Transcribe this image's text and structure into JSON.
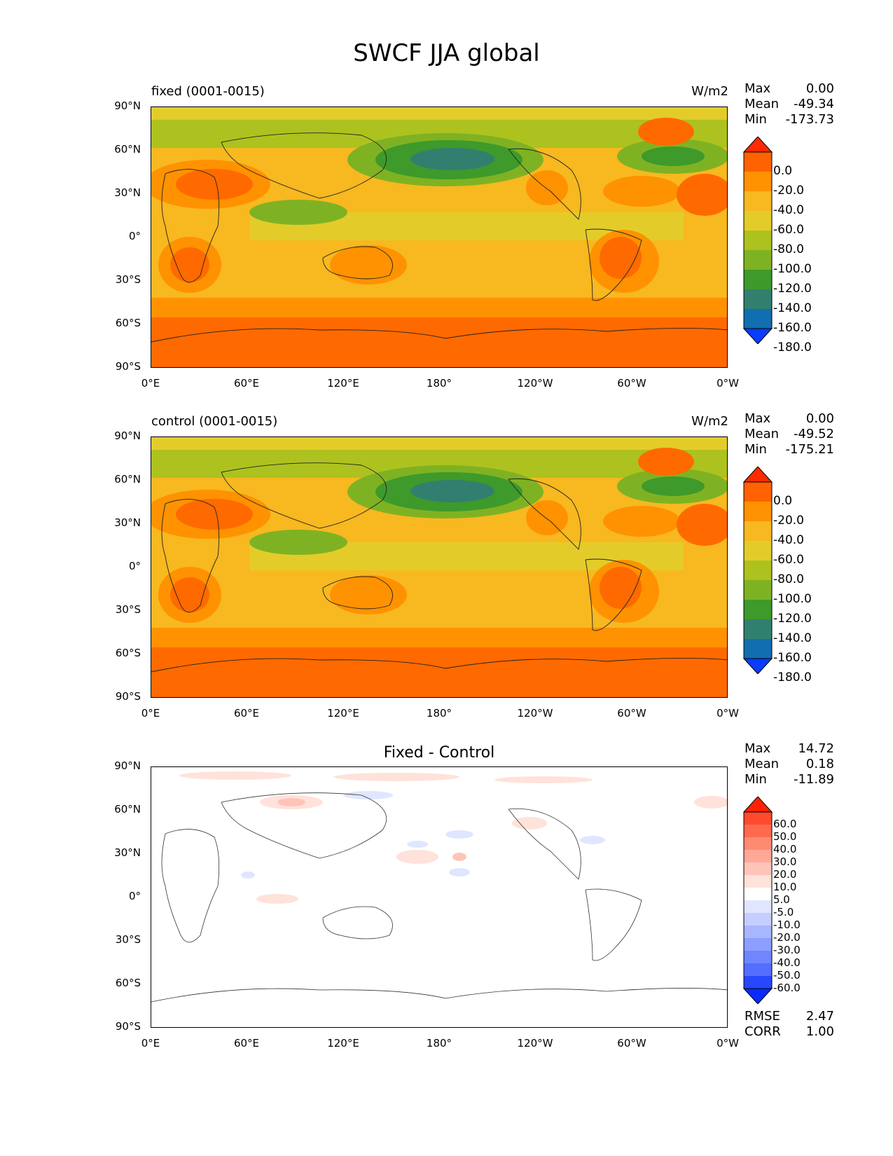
{
  "figure_title": "SWCF JJA global",
  "axes": {
    "lat_labels": [
      "90°N",
      "60°N",
      "30°N",
      "0°",
      "30°S",
      "60°S",
      "90°S"
    ],
    "lon_labels": [
      "0°E",
      "60°E",
      "120°E",
      "180°",
      "120°W",
      "60°W",
      "0°W"
    ]
  },
  "panels": [
    {
      "id": "fixed",
      "title": "fixed (0001-0015)",
      "units": "W/m2",
      "stats": [
        {
          "label": "Max",
          "value": "0.00"
        },
        {
          "label": "Mean",
          "value": "-49.34"
        },
        {
          "label": "Min",
          "value": "-173.73"
        }
      ],
      "colorbar": {
        "labels": [
          "0.0",
          "-20.0",
          "-40.0",
          "-60.0",
          "-80.0",
          "-100.0",
          "-120.0",
          "-140.0",
          "-160.0",
          "-180.0"
        ],
        "colors": [
          "#ff2a00",
          "#ff6200",
          "#ff9200",
          "#f7b820",
          "#e3cc2a",
          "#adc21e",
          "#7fb223",
          "#3e9a2a",
          "#31806f",
          "#116eb0",
          "#0a3cff"
        ]
      }
    },
    {
      "id": "control",
      "title": "control (0001-0015)",
      "units": "W/m2",
      "stats": [
        {
          "label": "Max",
          "value": "0.00"
        },
        {
          "label": "Mean",
          "value": "-49.52"
        },
        {
          "label": "Min",
          "value": "-175.21"
        }
      ],
      "colorbar": {
        "labels": [
          "0.0",
          "-20.0",
          "-40.0",
          "-60.0",
          "-80.0",
          "-100.0",
          "-120.0",
          "-140.0",
          "-160.0",
          "-180.0"
        ],
        "colors": [
          "#ff2a00",
          "#ff6200",
          "#ff9200",
          "#f7b820",
          "#e3cc2a",
          "#adc21e",
          "#7fb223",
          "#3e9a2a",
          "#31806f",
          "#116eb0",
          "#0a3cff"
        ]
      }
    },
    {
      "id": "diff",
      "title": "Fixed - Control",
      "units": "",
      "stats": [
        {
          "label": "Max",
          "value": "14.72"
        },
        {
          "label": "Mean",
          "value": "0.18"
        },
        {
          "label": "Min",
          "value": "-11.89"
        }
      ],
      "extra_stats": [
        {
          "label": "RMSE",
          "value": "2.47"
        },
        {
          "label": "CORR",
          "value": "1.00"
        }
      ],
      "colorbar": {
        "labels": [
          "60.0",
          "50.0",
          "40.0",
          "30.0",
          "20.0",
          "10.0",
          "5.0",
          "-5.0",
          "-10.0",
          "-20.0",
          "-30.0",
          "-40.0",
          "-50.0",
          "-60.0"
        ],
        "colors": [
          "#ff2200",
          "#ff4a2e",
          "#ff6a4e",
          "#ff8a72",
          "#ffa898",
          "#ffc4b8",
          "#ffe2da",
          "#ffffff",
          "#e0e6ff",
          "#c4ceff",
          "#a8b6ff",
          "#8c9eff",
          "#7086ff",
          "#546eff",
          "#2848ff",
          "#0a2aff"
        ]
      }
    }
  ],
  "colors": {
    "background": "#ffffff",
    "frame": "#000000"
  }
}
